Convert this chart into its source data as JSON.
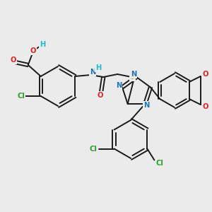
{
  "bg_color": "#ebebeb",
  "bond_color": "#1a1a1a",
  "bond_lw": 1.4,
  "font_size": 7.2,
  "figsize": [
    3.0,
    3.0
  ],
  "dpi": 100,
  "colors": {
    "C": "#1a1a1a",
    "N": "#1f77b4",
    "O": "#d62728",
    "S": "#bcbd22",
    "Cl": "#2ca02c",
    "H": "#17becf"
  }
}
